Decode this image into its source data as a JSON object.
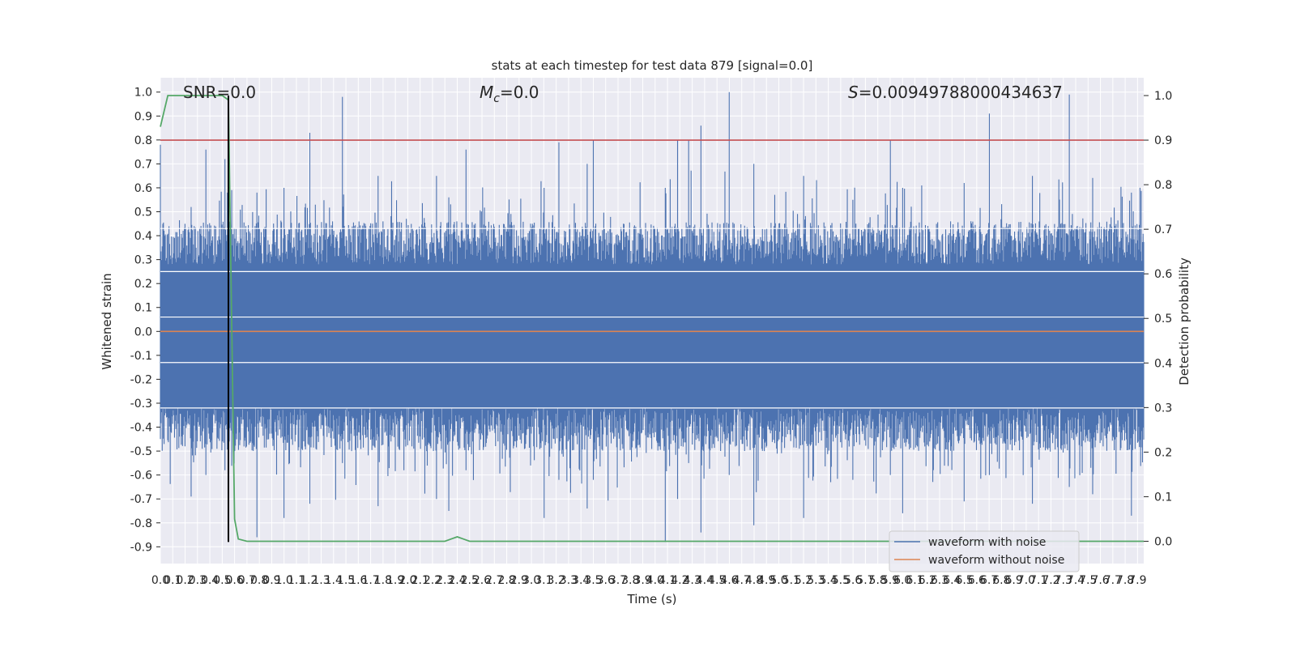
{
  "chart_data": {
    "type": "line",
    "title": "stats at each timestep for test data 879 [signal=0.0]",
    "xlabel": "Time (s)",
    "ylabel": "Whitened strain",
    "y2label": "Detection probability",
    "xlim": [
      0.0,
      7.95
    ],
    "ylim": [
      -0.97,
      1.06
    ],
    "y2lim": [
      -0.05,
      1.04
    ],
    "x_ticks": [
      "0.0",
      "0.1",
      "0.2",
      "0.3",
      "0.4",
      "0.5",
      "0.6",
      "0.7",
      "0.8",
      "0.9",
      "1.0",
      "1.1",
      "1.2",
      "1.3",
      "1.4",
      "1.5",
      "1.6",
      "1.7",
      "1.8",
      "1.9",
      "2.0",
      "2.1",
      "2.2",
      "2.3",
      "2.4",
      "2.5",
      "2.6",
      "2.7",
      "2.8",
      "2.9",
      "3.0",
      "3.1",
      "3.2",
      "3.3",
      "3.4",
      "3.5",
      "3.6",
      "3.7",
      "3.8",
      "3.9",
      "4.0",
      "4.1",
      "4.2",
      "4.3",
      "4.4",
      "4.5",
      "4.6",
      "4.7",
      "4.8",
      "4.9",
      "5.0",
      "5.1",
      "5.2",
      "5.3",
      "5.4",
      "5.5",
      "5.6",
      "5.7",
      "5.8",
      "5.9",
      "6.0",
      "6.1",
      "6.2",
      "6.3",
      "6.4",
      "6.5",
      "6.6",
      "6.7",
      "6.8",
      "6.9",
      "7.0",
      "7.1",
      "7.2",
      "7.3",
      "7.4",
      "7.5",
      "7.6",
      "7.7",
      "7.8",
      "7.9"
    ],
    "y_ticks": [
      "1.0",
      "0.9",
      "0.8",
      "0.7",
      "0.6",
      "0.5",
      "0.4",
      "0.3",
      "0.2",
      "0.1",
      "0.0",
      "-0.1",
      "-0.2",
      "-0.3",
      "-0.4",
      "-0.5",
      "-0.6",
      "-0.7",
      "-0.8",
      "-0.9"
    ],
    "y2_ticks": [
      "1.0",
      "0.9",
      "0.8",
      "0.7",
      "0.6",
      "0.5",
      "0.4",
      "0.3",
      "0.2",
      "0.1",
      "0.0"
    ],
    "annotations": {
      "snr": "SNR=0.0",
      "mc_symbol": "M",
      "mc_sub": "c",
      "mc_value": "=0.0",
      "s_symbol": "S",
      "s_value": "=0.00949788000434637"
    },
    "threshold": 0.9,
    "detection_time": 0.55,
    "series": [
      {
        "name": "waveform with noise",
        "color": "#4c72b0",
        "description": "dense noise, envelope approx ±0.4 with spikes",
        "spikes": [
          {
            "x": 0.0,
            "hi": 0.78,
            "lo": -0.45
          },
          {
            "x": 0.25,
            "hi": 0.52,
            "lo": -0.69
          },
          {
            "x": 0.37,
            "hi": 0.76,
            "lo": -0.6
          },
          {
            "x": 0.52,
            "hi": 0.72,
            "lo": -0.58
          },
          {
            "x": 0.78,
            "hi": 0.58,
            "lo": -0.86
          },
          {
            "x": 1.0,
            "hi": 0.6,
            "lo": -0.78
          },
          {
            "x": 1.21,
            "hi": 0.83,
            "lo": -0.72
          },
          {
            "x": 1.47,
            "hi": 0.98,
            "lo": -0.55
          },
          {
            "x": 1.76,
            "hi": 0.65,
            "lo": -0.73
          },
          {
            "x": 2.23,
            "hi": 0.65,
            "lo": -0.7
          },
          {
            "x": 2.33,
            "hi": 0.56,
            "lo": -0.75
          },
          {
            "x": 2.47,
            "hi": 0.76,
            "lo": -0.58
          },
          {
            "x": 3.1,
            "hi": 0.6,
            "lo": -0.78
          },
          {
            "x": 3.22,
            "hi": 0.79,
            "lo": -0.62
          },
          {
            "x": 3.45,
            "hi": 0.7,
            "lo": -0.74
          },
          {
            "x": 3.5,
            "hi": 0.8,
            "lo": -0.62
          },
          {
            "x": 4.08,
            "hi": 0.6,
            "lo": -0.88
          },
          {
            "x": 4.18,
            "hi": 0.8,
            "lo": -0.7
          },
          {
            "x": 4.27,
            "hi": 0.8,
            "lo": -0.55
          },
          {
            "x": 4.37,
            "hi": 0.86,
            "lo": -0.84
          },
          {
            "x": 4.6,
            "hi": 1.0,
            "lo": -0.6
          },
          {
            "x": 4.8,
            "hi": 0.7,
            "lo": -0.81
          },
          {
            "x": 5.2,
            "hi": 0.65,
            "lo": -0.78
          },
          {
            "x": 5.6,
            "hi": 0.55,
            "lo": -0.62
          },
          {
            "x": 5.9,
            "hi": 0.8,
            "lo": -0.6
          },
          {
            "x": 6.0,
            "hi": 0.6,
            "lo": -0.76
          },
          {
            "x": 6.5,
            "hi": 0.62,
            "lo": -0.71
          },
          {
            "x": 6.7,
            "hi": 0.91,
            "lo": -0.6
          },
          {
            "x": 7.05,
            "hi": 0.65,
            "lo": -0.72
          },
          {
            "x": 7.35,
            "hi": 0.99,
            "lo": -0.65
          },
          {
            "x": 7.85,
            "hi": 0.58,
            "lo": -0.77
          }
        ]
      },
      {
        "name": "waveform without noise",
        "color": "#dd8452",
        "x": [
          0.0,
          7.95
        ],
        "y": [
          0.0,
          0.0
        ]
      },
      {
        "name": "detection probability",
        "color": "#55a868",
        "axis": "right",
        "x": [
          0.0,
          0.06,
          0.1,
          0.2,
          0.3,
          0.4,
          0.5,
          0.55,
          0.6,
          0.63,
          0.7,
          2.3,
          2.35,
          2.4,
          2.45,
          2.5,
          7.95
        ],
        "y": [
          0.93,
          1.0,
          1.0,
          1.0,
          1.0,
          1.0,
          1.0,
          0.99,
          0.05,
          0.005,
          0.0,
          0.0,
          0.005,
          0.01,
          0.005,
          0.0,
          0.0
        ]
      }
    ],
    "legend": {
      "placement": "lower-right",
      "entries": [
        {
          "label": "waveform with noise",
          "color": "#4c72b0"
        },
        {
          "label": "waveform without noise",
          "color": "#dd8452"
        }
      ]
    },
    "colors": {
      "background": "#eaeaf2",
      "grid": "#ffffff",
      "noise": "#4c72b0",
      "clean": "#dd8452",
      "probability": "#55a868",
      "threshold": "#c44e52",
      "detection_line": "#000000"
    }
  }
}
